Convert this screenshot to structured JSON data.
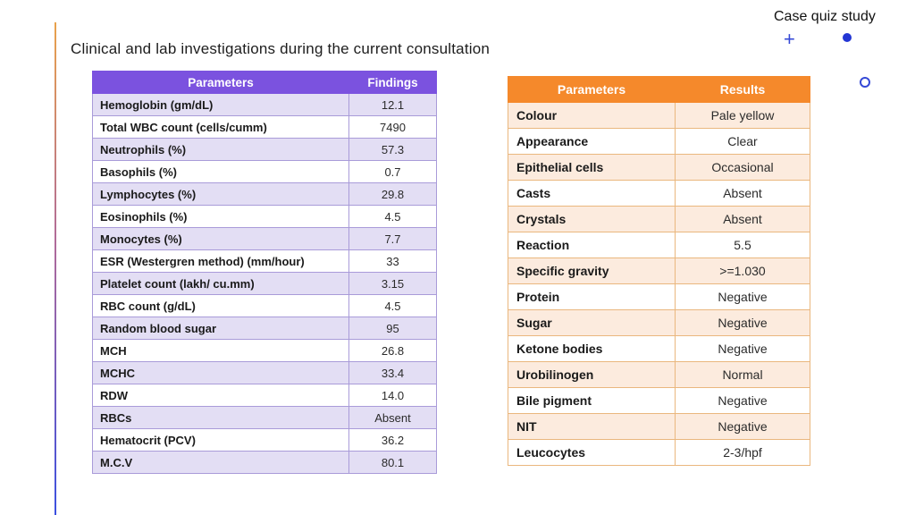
{
  "page": {
    "title": "Clinical and lab investigations during the current consultation",
    "corner_label": "Case quiz study"
  },
  "decor": {
    "plus_glyph": "+",
    "accent_blue": "#3549d6",
    "gradient_top_color": "#e9a24b",
    "gradient_bottom_color": "#3b50e0"
  },
  "blood_table": {
    "header_bg": "#7b52df",
    "alt_row_bg": "#e3def4",
    "border_color": "#a99bd9",
    "columns": [
      "Parameters",
      "Findings"
    ],
    "rows": [
      {
        "param": "Hemoglobin (gm/dL)",
        "value": "12.1"
      },
      {
        "param": "Total WBC count (cells/cumm)",
        "value": "7490"
      },
      {
        "param": "Neutrophils (%)",
        "value": "57.3"
      },
      {
        "param": "Basophils (%)",
        "value": "0.7"
      },
      {
        "param": "Lymphocytes (%)",
        "value": "29.8"
      },
      {
        "param": "Eosinophils (%)",
        "value": "4.5"
      },
      {
        "param": "Monocytes (%)",
        "value": "7.7"
      },
      {
        "param": "ESR (Westergren method) (mm/hour)",
        "value": "33"
      },
      {
        "param": "Platelet count (lakh/ cu.mm)",
        "value": "3.15"
      },
      {
        "param": "RBC count (g/dL)",
        "value": "4.5"
      },
      {
        "param": "Random blood sugar",
        "value": "95"
      },
      {
        "param": "MCH",
        "value": "26.8"
      },
      {
        "param": "MCHC",
        "value": "33.4"
      },
      {
        "param": "RDW",
        "value": "14.0"
      },
      {
        "param": "RBCs",
        "value": "Absent"
      },
      {
        "param": "Hematocrit (PCV)",
        "value": "36.2"
      },
      {
        "param": "M.C.V",
        "value": "80.1"
      }
    ]
  },
  "urine_table": {
    "header_bg": "#f5892b",
    "alt_row_bg": "#fcebde",
    "border_color": "#eab77e",
    "columns": [
      "Parameters",
      "Results"
    ],
    "rows": [
      {
        "param": "Colour",
        "value": "Pale yellow"
      },
      {
        "param": "Appearance",
        "value": "Clear"
      },
      {
        "param": "Epithelial cells",
        "value": "Occasional"
      },
      {
        "param": "Casts",
        "value": "Absent"
      },
      {
        "param": "Crystals",
        "value": "Absent"
      },
      {
        "param": "Reaction",
        "value": "5.5"
      },
      {
        "param": "Specific gravity",
        "value": ">=1.030"
      },
      {
        "param": "Protein",
        "value": "Negative"
      },
      {
        "param": "Sugar",
        "value": "Negative"
      },
      {
        "param": "Ketone bodies",
        "value": "Negative"
      },
      {
        "param": "Urobilinogen",
        "value": "Normal"
      },
      {
        "param": "Bile pigment",
        "value": "Negative"
      },
      {
        "param": "NIT",
        "value": "Negative"
      },
      {
        "param": "Leucocytes",
        "value": "2-3/hpf"
      }
    ]
  }
}
